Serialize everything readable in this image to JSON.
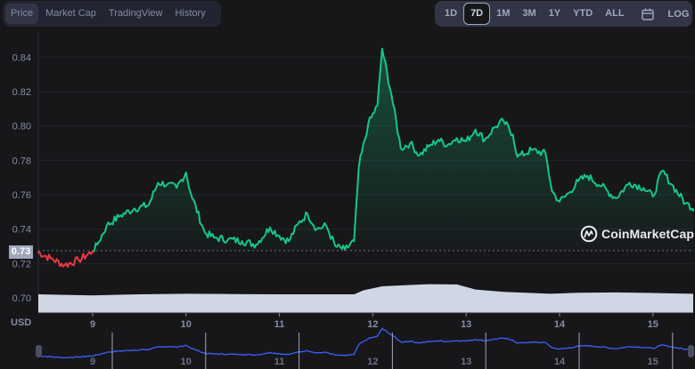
{
  "tabs": [
    {
      "label": "Price",
      "active": true
    },
    {
      "label": "Market Cap",
      "active": false
    },
    {
      "label": "TradingView",
      "active": false
    },
    {
      "label": "History",
      "active": false
    }
  ],
  "ranges": [
    {
      "label": "1D",
      "active": false
    },
    {
      "label": "7D",
      "active": true
    },
    {
      "label": "1M",
      "active": false
    },
    {
      "label": "3M",
      "active": false
    },
    {
      "label": "1Y",
      "active": false
    },
    {
      "label": "YTD",
      "active": false
    },
    {
      "label": "ALL",
      "active": false
    }
  ],
  "calendar_icon": "calendar-icon",
  "log_label": "LOG",
  "current_price_label": "0.73",
  "currency_label": "USD",
  "watermark": "CoinMarketCap",
  "colors": {
    "up": "#16c784",
    "down": "#ea3943",
    "volume": "#cfd6e4",
    "navigator_line": "#3861fb",
    "background": "#17171a"
  },
  "chart_data": {
    "type": "line",
    "title": "",
    "xlabel": "",
    "ylabel": "USD",
    "ylim": [
      0.695,
      0.848
    ],
    "yticks": [
      "0.70",
      "0.72",
      "0.74",
      "0.76",
      "0.78",
      "0.80",
      "0.82",
      "0.84"
    ],
    "xticks": [
      "9",
      "10",
      "11",
      "12",
      "13",
      "14",
      "15"
    ],
    "reference_price": 0.7275,
    "grid": true,
    "legend": "none",
    "series": [
      {
        "name": "Price",
        "x": [
          8.4,
          8.55,
          8.7,
          8.85,
          9.0,
          9.05,
          9.15,
          9.3,
          9.45,
          9.6,
          9.7,
          9.8,
          9.9,
          10.0,
          10.05,
          10.2,
          10.3,
          10.45,
          10.6,
          10.75,
          10.9,
          11.0,
          11.1,
          11.2,
          11.3,
          11.4,
          11.5,
          11.6,
          11.7,
          11.8,
          11.85,
          11.95,
          12.05,
          12.1,
          12.2,
          12.3,
          12.4,
          12.5,
          12.6,
          12.7,
          12.8,
          12.9,
          13.0,
          13.1,
          13.2,
          13.3,
          13.4,
          13.5,
          13.55,
          13.7,
          13.85,
          13.92,
          14.0,
          14.1,
          14.2,
          14.3,
          14.45,
          14.6,
          14.75,
          14.9,
          15.0,
          15.1,
          15.2,
          15.35,
          15.45
        ],
        "values": [
          0.727,
          0.723,
          0.719,
          0.722,
          0.727,
          0.731,
          0.742,
          0.748,
          0.752,
          0.754,
          0.767,
          0.766,
          0.764,
          0.773,
          0.761,
          0.738,
          0.735,
          0.734,
          0.733,
          0.731,
          0.741,
          0.736,
          0.733,
          0.743,
          0.749,
          0.74,
          0.742,
          0.73,
          0.728,
          0.733,
          0.776,
          0.801,
          0.812,
          0.845,
          0.818,
          0.787,
          0.79,
          0.783,
          0.788,
          0.792,
          0.789,
          0.793,
          0.791,
          0.798,
          0.792,
          0.799,
          0.803,
          0.795,
          0.782,
          0.786,
          0.784,
          0.762,
          0.756,
          0.761,
          0.768,
          0.771,
          0.765,
          0.758,
          0.767,
          0.764,
          0.759,
          0.774,
          0.766,
          0.755,
          0.752
        ]
      }
    ],
    "volume": {
      "description": "relative volume area at bottom of chart",
      "x": [
        8.4,
        9.0,
        9.5,
        10.0,
        10.5,
        11.0,
        11.5,
        11.8,
        11.9,
        12.1,
        12.4,
        12.6,
        12.9,
        13.1,
        13.4,
        13.7,
        13.9,
        14.2,
        14.6,
        15.0,
        15.45
      ],
      "values": [
        0.7,
        0.66,
        0.7,
        0.72,
        0.71,
        0.7,
        0.7,
        0.7,
        0.85,
        1.0,
        1.05,
        1.08,
        1.07,
        0.88,
        0.79,
        0.75,
        0.72,
        0.76,
        0.77,
        0.75,
        0.72
      ]
    }
  }
}
